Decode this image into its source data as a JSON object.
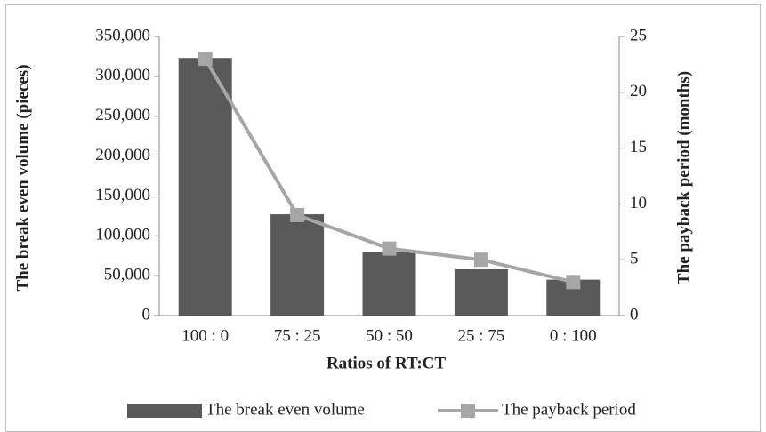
{
  "chart_data": {
    "type": "bar_line",
    "x_label": "Ratios of RT:CT",
    "y_label": "The break even volume (pieces)",
    "y2_label": "The payback period (months)",
    "categories": [
      "100 : 0",
      "75 : 25",
      "50 : 50",
      "25 : 75",
      "0 : 100"
    ],
    "series": [
      {
        "name": "The break even volume",
        "type": "bar",
        "color": "#595959",
        "values": [
          323000,
          127000,
          80000,
          58000,
          45000
        ]
      },
      {
        "name": "The payback period",
        "type": "line",
        "axis": "y2",
        "color": "#a6a6a6",
        "values": [
          23,
          9,
          6,
          5,
          3
        ]
      }
    ],
    "ylim": [
      0,
      350000
    ],
    "yticks": [
      0,
      {
        "value": 50000,
        "label": "50,000"
      },
      {
        "value": 100000,
        "label": "100,000"
      },
      {
        "value": 150000,
        "label": "150,000"
      },
      {
        "value": 200000,
        "label": "200,000"
      },
      {
        "value": 250000,
        "label": "250,000"
      },
      {
        "value": 300000,
        "label": "300,000"
      },
      {
        "value": 350000,
        "label": "350,000"
      }
    ],
    "y2lim": [
      0,
      25
    ],
    "y2ticks": [
      0,
      5,
      10,
      15,
      20,
      25
    ],
    "legend": "bottom"
  }
}
